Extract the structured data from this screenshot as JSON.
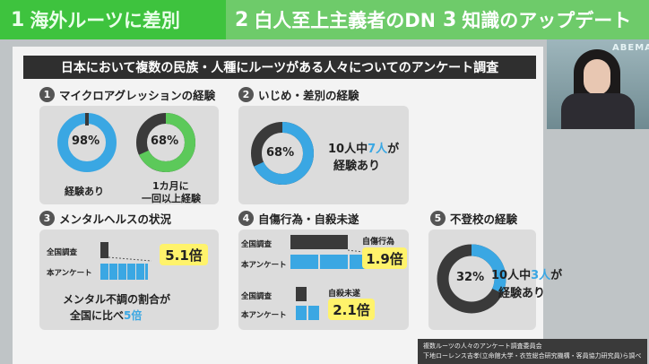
{
  "tabs": [
    {
      "num": "1",
      "label": "海外ルーツに差別"
    },
    {
      "num": "2",
      "label": "白人至上主義者のDNA"
    },
    {
      "num": "3",
      "label": "知識のアップデート"
    }
  ],
  "studio_sign": "ABEMA",
  "title": "日本において複数の民族・人種にルーツがある人々についてのアンケート調査",
  "s1": {
    "num": "1",
    "title": "マイクロアグレッションの経験",
    "v1": "98%",
    "c1": "経験あり",
    "v2": "68%",
    "c2a": "1カ月に",
    "c2b": "一回以上経験"
  },
  "s2": {
    "num": "2",
    "title": "いじめ・差別の経験",
    "v": "68%",
    "a": "10人中",
    "b": "7人",
    "c": "が",
    "d": "経験あり"
  },
  "s3": {
    "num": "3",
    "title": "メンタルヘルスの状況",
    "l1": "全国調査",
    "l2": "本アンケート",
    "mult": "5.1倍",
    "n1": "メンタル不調の割合が",
    "n2a": "全国に比べ",
    "n2b": "5倍"
  },
  "s4": {
    "num": "4",
    "title": "自傷行為・自殺未遂",
    "l1": "全国調査",
    "l2": "本アンケート",
    "k1": "自傷行為",
    "m1": "1.9倍",
    "k2": "自殺未遂",
    "m2": "2.1倍"
  },
  "s5": {
    "num": "5",
    "title": "不登校の経験",
    "v": "32%",
    "a": "10人中",
    "b": "3人",
    "c": "が",
    "d": "経験あり"
  },
  "source": {
    "l1": "複数ルーツの人々のアンケート調査委員会",
    "l2": "下地ローレンス吉孝(立命館大学・衣笠総合研究機構・客員協力研究員)ら調べ"
  },
  "colors": {
    "green": "#5cc95a",
    "blue": "#3aa7e3",
    "dark": "#3a3a3a",
    "yellow": "#fff36b"
  }
}
